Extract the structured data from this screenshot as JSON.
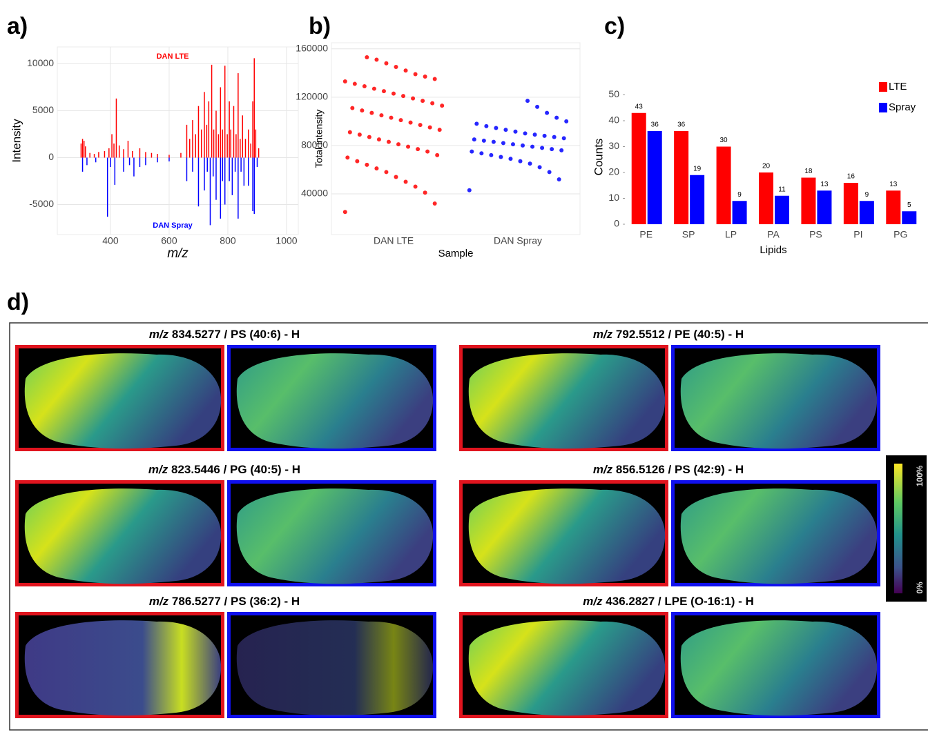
{
  "chart_data": [
    {
      "type": "spectrum",
      "panel_label": "a)",
      "x_label": "m/z",
      "y_label": "Intensity",
      "xlim": [
        219,
        1040
      ],
      "ylim": [
        -8200,
        11800
      ],
      "xticks": [
        400,
        600,
        800,
        1000
      ],
      "yticks": [
        -5000,
        0,
        5000,
        10000
      ],
      "grid": true,
      "series": [
        {
          "name": "DAN LTE",
          "color": "#ff0000",
          "x": [
            300,
            305,
            310,
            315,
            330,
            345,
            360,
            380,
            395,
            405,
            412,
            420,
            430,
            445,
            460,
            475,
            500,
            520,
            540,
            560,
            600,
            640,
            660,
            670,
            680,
            690,
            700,
            710,
            720,
            728,
            735,
            745,
            752,
            760,
            768,
            775,
            782,
            790,
            798,
            805,
            810,
            820,
            828,
            835,
            842,
            850,
            860,
            870,
            878,
            885,
            890,
            895,
            905
          ],
          "values": [
            1500,
            2000,
            1800,
            1200,
            500,
            400,
            600,
            700,
            1000,
            2500,
            1500,
            6300,
            1300,
            900,
            1800,
            700,
            1000,
            600,
            500,
            400,
            300,
            500,
            3500,
            2000,
            4000,
            2500,
            5500,
            3000,
            7000,
            3500,
            6000,
            9900,
            3000,
            5000,
            2500,
            7500,
            3000,
            9800,
            2500,
            6000,
            3000,
            5500,
            2500,
            9000,
            2000,
            4500,
            2000,
            3000,
            1500,
            6000,
            10600,
            3000,
            1000
          ]
        },
        {
          "name": "DAN Spray",
          "color": "#0000ff",
          "x": [
            305,
            320,
            350,
            390,
            400,
            415,
            445,
            465,
            480,
            500,
            520,
            560,
            600,
            660,
            680,
            700,
            720,
            730,
            740,
            750,
            760,
            775,
            782,
            790,
            805,
            815,
            825,
            835,
            845,
            855,
            870,
            885,
            890,
            900
          ],
          "values": [
            -1500,
            -800,
            -500,
            -6300,
            -1000,
            -2900,
            -1500,
            -800,
            -2000,
            -1000,
            -800,
            -500,
            -400,
            -2500,
            -1500,
            -5200,
            -3500,
            -1500,
            -7200,
            -2000,
            -4500,
            -6500,
            -2500,
            -5000,
            -2500,
            -4000,
            -1500,
            -6500,
            -1500,
            -3000,
            -3000,
            -5700,
            -6000,
            -1000
          ]
        }
      ]
    },
    {
      "type": "strip",
      "panel_label": "b)",
      "x_label": "Sample",
      "y_label": "Total intensity",
      "ylim": [
        6300,
        165000
      ],
      "yticks": [
        40000,
        80000,
        120000,
        160000
      ],
      "grid": true,
      "categories": [
        "DAN LTE",
        "DAN Spray"
      ],
      "series": [
        {
          "color": "#ff0000",
          "values": [
            25000,
            32000,
            41000,
            46000,
            50000,
            54000,
            58000,
            61000,
            64000,
            67000,
            70000,
            72000,
            75000,
            77000,
            79000,
            81000,
            83000,
            85000,
            87000,
            89000,
            91000,
            93000,
            95000,
            97000,
            99000,
            101000,
            103000,
            105000,
            107000,
            109000,
            111000,
            113000,
            115000,
            117000,
            119000,
            121000,
            123000,
            125000,
            127000,
            129000,
            131000,
            133000,
            135000,
            137000,
            139000,
            142000,
            145000,
            148000,
            151000,
            153000
          ]
        },
        {
          "color": "#0000ff",
          "values": [
            43000,
            52000,
            58000,
            62000,
            65000,
            67000,
            69000,
            70500,
            72000,
            73500,
            75000,
            76000,
            77000,
            78000,
            79000,
            80000,
            81000,
            82000,
            83000,
            84000,
            85000,
            86000,
            87000,
            88000,
            89000,
            90000,
            91500,
            93000,
            94500,
            96000,
            98000,
            100000,
            103000,
            107000,
            112000,
            117000
          ]
        }
      ]
    },
    {
      "type": "bar",
      "panel_label": "c)",
      "x_label": "Lipids",
      "y_label": "Counts",
      "ylim": [
        0,
        52
      ],
      "yticks": [
        0,
        10,
        20,
        30,
        40,
        50
      ],
      "legend": "top-right",
      "categories": [
        "PE",
        "SP",
        "LP",
        "PA",
        "PS",
        "PI",
        "PG"
      ],
      "series": [
        {
          "name": "LTE",
          "color": "#ff0000",
          "values": [
            43,
            36,
            30,
            20,
            18,
            16,
            13
          ]
        },
        {
          "name": "Spray",
          "color": "#0000ff",
          "values": [
            36,
            19,
            9,
            11,
            13,
            9,
            5
          ]
        }
      ]
    }
  ],
  "image_panel": {
    "label": "d)",
    "mz_prefix": "m/z",
    "groups": [
      "834.5277 / PS (40:6) - H",
      "792.5512 / PE (40:5) - H",
      "823.5446 / PG (40:5) - H",
      "856.5126 / PS (42:9) - H",
      "786.5277 / PS (36:2) - H",
      "436.2827 / LPE (O-16:1) - H"
    ],
    "colorbar": {
      "max": "100%",
      "min": "0%"
    }
  }
}
